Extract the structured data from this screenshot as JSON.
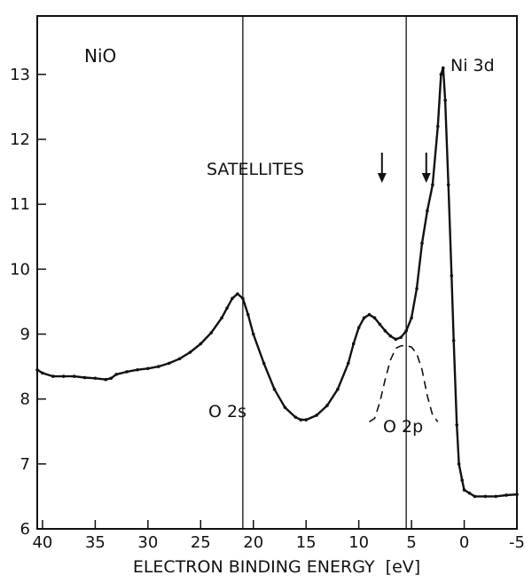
{
  "chart_data": {
    "type": "line",
    "title": "NiO",
    "xlabel": "ELECTRON BINDING ENERGY  [eV]",
    "ylabel": "",
    "xlim": [
      40.5,
      -5
    ],
    "ylim": [
      6,
      13.9
    ],
    "x_reversed": true,
    "grid": false,
    "x_ticks": [
      40,
      35,
      30,
      25,
      20,
      15,
      10,
      5,
      0,
      -5
    ],
    "y_ticks": [
      6,
      7,
      8,
      9,
      10,
      11,
      12,
      13
    ],
    "reference_lines_x": [
      21,
      5.5
    ],
    "annotations": {
      "ni3d": "Ni 3d",
      "satellites": "SATELLITES",
      "o2s": "O 2s",
      "o2p": "O 2p"
    },
    "satellite_arrows_x": [
      7.8,
      3.6
    ],
    "series": [
      {
        "style": "solid-with-points",
        "x": [
          40.5,
          40,
          39,
          38,
          37,
          36,
          35,
          34,
          33.5,
          33,
          32,
          31,
          30,
          29,
          28,
          27,
          26,
          25,
          24,
          23,
          22.5,
          22,
          21.5,
          21,
          20.5,
          20,
          19,
          18,
          17,
          16,
          15.5,
          15,
          14,
          13,
          12,
          11,
          10.5,
          10,
          9.5,
          9,
          8.5,
          8,
          7.5,
          7,
          6.5,
          6,
          5.5,
          5,
          4.5,
          4,
          3.5,
          3,
          2.5,
          2.2,
          2,
          1.8,
          1.5,
          1.2,
          1,
          0.7,
          0.5,
          0.2,
          0,
          -0.5,
          -1,
          -2,
          -3,
          -4,
          -5
        ],
        "y": [
          8.45,
          8.4,
          8.35,
          8.35,
          8.35,
          8.33,
          8.32,
          8.3,
          8.32,
          8.38,
          8.42,
          8.45,
          8.47,
          8.5,
          8.55,
          8.62,
          8.72,
          8.85,
          9.02,
          9.25,
          9.4,
          9.55,
          9.62,
          9.55,
          9.3,
          9.0,
          8.55,
          8.15,
          7.87,
          7.72,
          7.68,
          7.68,
          7.75,
          7.9,
          8.15,
          8.55,
          8.85,
          9.1,
          9.25,
          9.3,
          9.25,
          9.15,
          9.05,
          8.97,
          8.92,
          8.95,
          9.05,
          9.25,
          9.7,
          10.4,
          10.9,
          11.3,
          12.2,
          13.0,
          13.1,
          12.6,
          11.3,
          9.9,
          8.9,
          7.6,
          7.0,
          6.75,
          6.6,
          6.55,
          6.5,
          6.5,
          6.5,
          6.52,
          6.53
        ]
      },
      {
        "name": "O 2p",
        "style": "dashed",
        "x": [
          9,
          8.5,
          8,
          7.5,
          7,
          6.5,
          6,
          5.5,
          5,
          4.5,
          4,
          3.5,
          3,
          2.5
        ],
        "y": [
          7.65,
          7.7,
          7.95,
          8.3,
          8.6,
          8.78,
          8.82,
          8.82,
          8.8,
          8.7,
          8.45,
          8.05,
          7.75,
          7.65
        ]
      }
    ]
  }
}
